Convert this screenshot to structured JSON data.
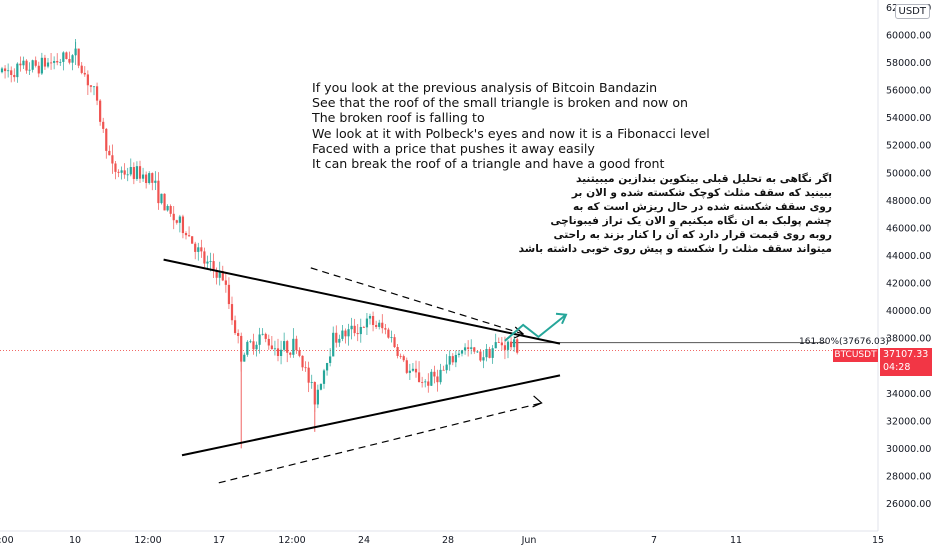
{
  "ticker": {
    "currency_label": "USDT",
    "symbol": "BTCUSDT",
    "last_price": "37107.33",
    "countdown": "04:28"
  },
  "annotations": {
    "english_lines": [
      "If you look at the previous analysis of Bitcoin Bandazin",
      "See that the roof of the small triangle is broken and now on",
      "The broken roof is falling to",
      "We look at it with Polbeck's eyes and now it is a Fibonacci level",
      "Faced with a price that pushes it away easily",
      "It can break the roof of a triangle and have a good front"
    ],
    "persian_lines": [
      "اگر نگاهی به تحلیل قبلی بیتکوین بندازین میبیتنید",
      "ببینید که سقف مثلث کوچک شکسته شده و الان بر",
      "روی سقف شکسته شده در حال ریزش است که به",
      "چشم پولبک به ان نگاه میکنیم و الان یک تراز فیبوناچی",
      "روبه روی قیمت قرار دارد که آن را کنار بزند به راحتی",
      "میتواند سقف مثلث را شکسته و پیش روی خوبی داشته باشد"
    ],
    "fib_label": "161.80%(37676.03)"
  },
  "colors": {
    "bull": "#26a69a",
    "bear": "#ef5350",
    "trendline": "#000000",
    "arrow": "#26a69a",
    "price_tag": "#f23645",
    "axis_text": "#131722"
  },
  "chart_data": {
    "type": "candlestick",
    "symbol": "BTCUSDT",
    "ylim": [
      24900,
      62100
    ],
    "y_ticks": [
      26000,
      28000,
      30000,
      32000,
      34000,
      36000,
      38000,
      40000,
      42000,
      44000,
      46000,
      48000,
      50000,
      52000,
      54000,
      56000,
      58000,
      60000,
      62000
    ],
    "y_tick_labels": [
      "26000.00",
      "28000.00",
      "30000.00",
      "32000.00",
      "34000.00",
      "",
      "38000.00",
      "40000.00",
      "42000.00",
      "44000.00",
      "46000.00",
      "48000.00",
      "50000.00",
      "52000.00",
      "54000.00",
      "56000.00",
      "58000.00",
      "60000.00",
      "62000.00"
    ],
    "x_tick_labels": [
      ":00",
      "10",
      "12:00",
      "17",
      "12:00",
      "24",
      "28",
      "Jun",
      "7",
      "11",
      "15"
    ],
    "x_range_days": [
      "May 6",
      "Jun 18"
    ],
    "last_price": 37107.33,
    "fib_level": {
      "ratio": "161.80%",
      "price": 37676.03
    },
    "price_path_anchors": [
      {
        "date": "May 6",
        "price": 57300
      },
      {
        "date": "May 8",
        "price": 57800
      },
      {
        "date": "May 10",
        "price": 58500
      },
      {
        "date": "May 11",
        "price": 55800
      },
      {
        "date": "May 12",
        "price": 50200
      },
      {
        "date": "May 13",
        "price": 50000
      },
      {
        "date": "May 14",
        "price": 49800
      },
      {
        "date": "May 15",
        "price": 47100
      },
      {
        "date": "May 16",
        "price": 45800
      },
      {
        "date": "May 17",
        "price": 43500
      },
      {
        "date": "May 18",
        "price": 42400
      },
      {
        "date": "May 19",
        "price": 36800
      },
      {
        "date": "May 20",
        "price": 38200
      },
      {
        "date": "May 21",
        "price": 37200
      },
      {
        "date": "May 22",
        "price": 37500
      },
      {
        "date": "May 23",
        "price": 33600
      },
      {
        "date": "May 24",
        "price": 38000
      },
      {
        "date": "May 25",
        "price": 38500
      },
      {
        "date": "May 26",
        "price": 39200
      },
      {
        "date": "May 27",
        "price": 38400
      },
      {
        "date": "May 28",
        "price": 35700
      },
      {
        "date": "May 29",
        "price": 34800
      },
      {
        "date": "May 30",
        "price": 35600
      },
      {
        "date": "May 31",
        "price": 37300
      },
      {
        "date": "Jun 1",
        "price": 36700
      },
      {
        "date": "Jun 2",
        "price": 37600
      },
      {
        "date": "Jun 3",
        "price": 37400
      }
    ],
    "extremes": [
      {
        "label": "wick low",
        "date": "May 19",
        "price": 30000
      },
      {
        "label": "swing low",
        "date": "May 23",
        "price": 31200
      },
      {
        "label": "high",
        "date": "May 10",
        "price": 59500
      }
    ],
    "trendlines": [
      {
        "name": "triangle-roof",
        "style": "solid",
        "from": {
          "date": "May 15",
          "price": 43700
        },
        "to": {
          "date": "Jun 5",
          "price": 37600
        }
      },
      {
        "name": "triangle-floor",
        "style": "solid",
        "from": {
          "date": "May 16",
          "price": 29500
        },
        "to": {
          "date": "Jun 5",
          "price": 35300
        }
      },
      {
        "name": "upper-projection",
        "style": "dashed",
        "from": {
          "date": "May 23",
          "price": 43100
        },
        "to": {
          "date": "Jun 3",
          "price": 38300
        }
      },
      {
        "name": "lower-projection",
        "style": "dashed",
        "from": {
          "date": "May 18",
          "price": 27500
        },
        "to": {
          "date": "Jun 4",
          "price": 33300
        }
      }
    ],
    "arrow": {
      "from": {
        "date": "Jun 2",
        "price": 37800
      },
      "to": {
        "date": "Jun 5",
        "price": 39700
      },
      "style": "zigzag-up"
    }
  }
}
